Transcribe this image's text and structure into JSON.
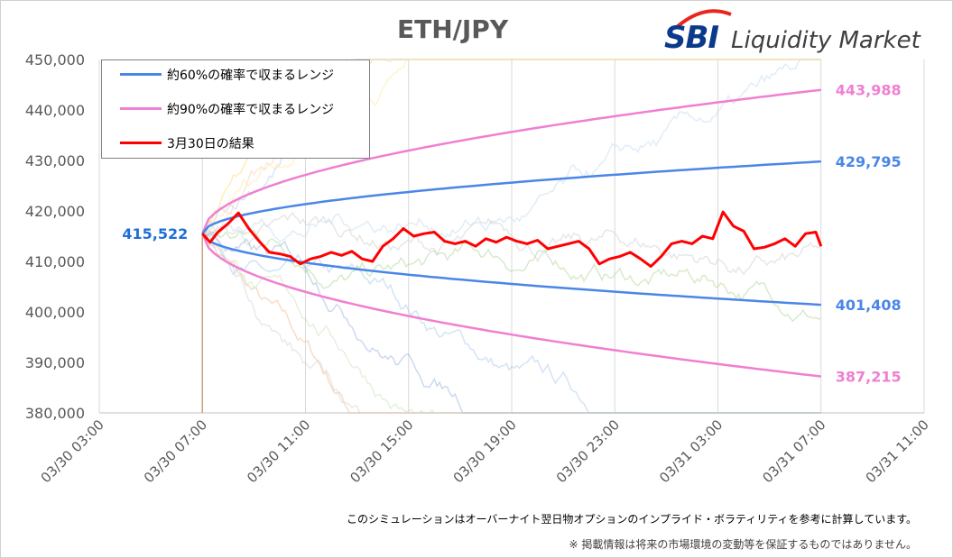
{
  "title": "ETH/JPY",
  "logo": {
    "brand": "SBI",
    "text": "Liquidity Market"
  },
  "legend": [
    {
      "label": "約60%の確率で収まるレンジ",
      "color": "#4a86e8"
    },
    {
      "label": "約90%の確率で収まるレンジ",
      "color": "#f07fd2"
    },
    {
      "label": "3月30日の結果",
      "color": "#ff0000"
    }
  ],
  "footnotes": {
    "line1": "このシミュレーションはオーバーナイト翌日物オプションのインプライド・ボラティリティを参考に計算しています。",
    "line2": "※ 掲載情報は将来の市場環境の変動等を保証するものではありません。"
  },
  "chart_data": {
    "type": "line",
    "title": "ETH/JPY",
    "x_ticks": [
      "03/30 03:00",
      "03/30 07:00",
      "03/30 11:00",
      "03/30 15:00",
      "03/30 19:00",
      "03/30 23:00",
      "03/31 03:00",
      "03/31 07:00",
      "03/31 11:00"
    ],
    "y_ticks": [
      "380,000",
      "390,000",
      "400,000",
      "410,000",
      "420,000",
      "430,000",
      "440,000",
      "450,000"
    ],
    "ylim": [
      380000,
      450000
    ],
    "xlim_hours": [
      0,
      32
    ],
    "grid": "vertical",
    "legend_position": "top-left",
    "start_hour": 4,
    "end_hour": 28,
    "start_value": 415522,
    "start_label": "415,522",
    "band_60": {
      "upper_end": 429795,
      "lower_end": 401408,
      "upper_label": "429,795",
      "lower_label": "401,408",
      "color": "#4a86e8"
    },
    "band_90": {
      "upper_end": 443988,
      "lower_end": 387215,
      "upper_label": "443,988",
      "lower_label": "387,215",
      "color": "#f07fd2"
    },
    "result": {
      "name": "3月30日の結果",
      "color": "#ff0000",
      "x_hours": [
        4,
        4.3,
        4.6,
        5,
        5.4,
        5.8,
        6.2,
        6.6,
        7,
        7.4,
        7.8,
        8.2,
        8.6,
        9,
        9.4,
        9.8,
        10.2,
        10.6,
        11,
        11.4,
        11.8,
        12.2,
        12.6,
        13,
        13.4,
        13.8,
        14.2,
        14.6,
        15,
        15.4,
        15.8,
        16.2,
        16.6,
        17,
        17.4,
        17.8,
        18.2,
        18.6,
        19,
        19.4,
        19.8,
        20.2,
        20.6,
        21,
        21.4,
        21.8,
        22.2,
        22.6,
        23,
        23.4,
        23.8,
        24.2,
        24.6,
        25,
        25.4,
        25.8,
        26.2,
        26.6,
        27,
        27.4,
        27.8,
        28
      ],
      "values": [
        415500,
        413800,
        415800,
        417500,
        419600,
        416500,
        414000,
        411800,
        411500,
        411000,
        409500,
        410500,
        411000,
        411800,
        411200,
        412000,
        410500,
        410000,
        413000,
        414500,
        416500,
        415000,
        415500,
        415800,
        414000,
        413500,
        414000,
        413000,
        414500,
        413800,
        414800,
        414000,
        413500,
        414200,
        412500,
        413000,
        413500,
        414000,
        412500,
        409500,
        410500,
        411000,
        411800,
        410500,
        409000,
        411000,
        413500,
        414000,
        413500,
        415000,
        414500,
        419800,
        417000,
        416000,
        412500,
        412800,
        413500,
        414500,
        413000,
        415500,
        415800,
        413000
      ]
    }
  }
}
